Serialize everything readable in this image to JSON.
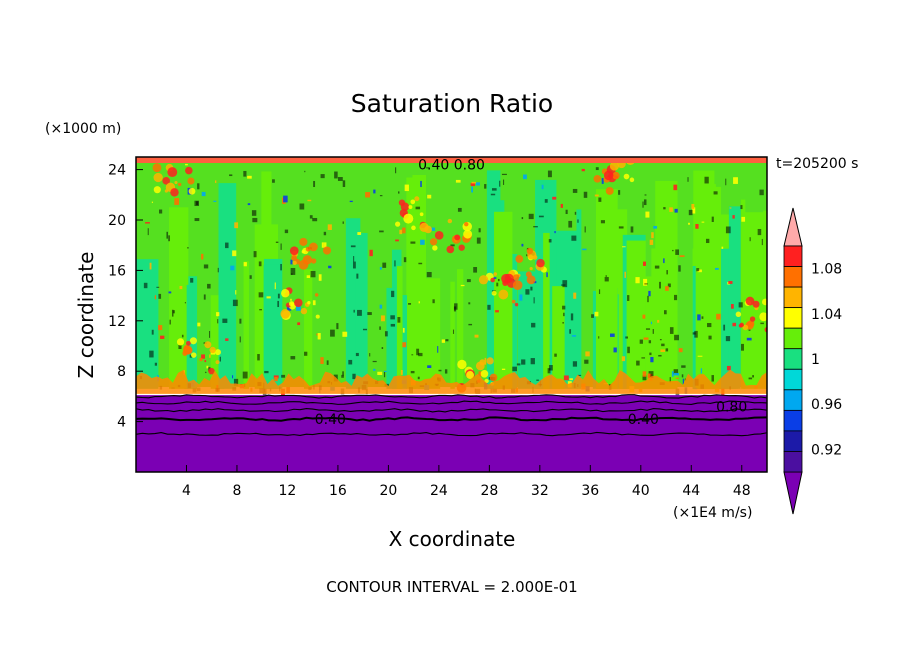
{
  "chart_data": {
    "type": "heatmap",
    "title": "Saturation Ratio",
    "xlabel": "X coordinate",
    "ylabel": "Z coordinate",
    "x_unit": "(×1E4 m/s)",
    "y_unit": "(×1000 m)",
    "time_label": "t=205200 s",
    "footer": "CONTOUR INTERVAL = 2.000E-01",
    "xlim": [
      0,
      50
    ],
    "ylim": [
      0,
      25
    ],
    "x_ticks": [
      4,
      8,
      12,
      16,
      20,
      24,
      28,
      32,
      36,
      40,
      44,
      48
    ],
    "y_ticks": [
      4,
      8,
      12,
      16,
      20,
      24
    ],
    "contour_labels": [
      {
        "text": "0.40",
        "x": 15.4,
        "y": 4.2
      },
      {
        "text": "0.40",
        "x": 40.2,
        "y": 4.2
      },
      {
        "text": "0.80",
        "x": 47.2,
        "y": 5.2
      },
      {
        "text": "0.40 0.80",
        "x": 25.0,
        "y": 24.4
      }
    ],
    "colorbar": {
      "labels": [
        "0.92",
        "0.96",
        "1",
        "1.04",
        "1.08"
      ],
      "levels": [
        0.9,
        0.92,
        0.94,
        0.96,
        0.98,
        1.0,
        1.02,
        1.04,
        1.06,
        1.08,
        1.1
      ],
      "colors": [
        "#4b0fa0",
        "#1c1aa8",
        "#0a3ee6",
        "#00a8f0",
        "#00d8d8",
        "#19e080",
        "#66ee0a",
        "#ffff00",
        "#ffb400",
        "#ff7000",
        "#ff2020"
      ],
      "under_color": "#7b00b4",
      "over_color": "#ffaaaa"
    },
    "contour_lines_z": [
      3.0,
      4.2,
      4.9,
      5.5,
      6.0
    ]
  }
}
